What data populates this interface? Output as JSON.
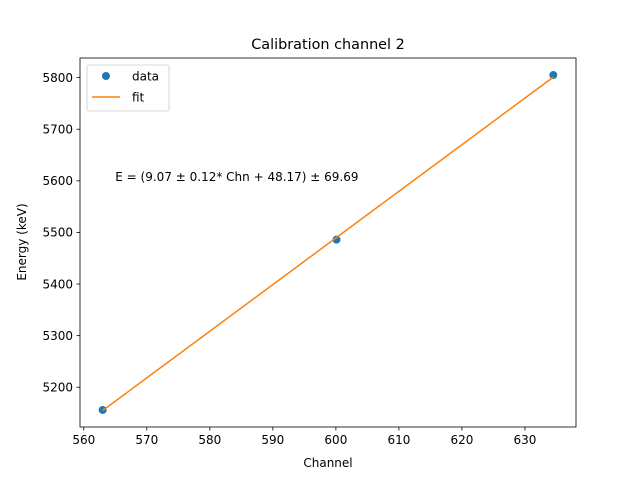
{
  "chart_data": {
    "type": "scatter",
    "title": "Calibration channel 2",
    "xlabel": "Channel",
    "ylabel": "Energy (keV)",
    "xlim": [
      559.4,
      638.1
    ],
    "ylim": [
      5123,
      5838
    ],
    "xticks": [
      560,
      570,
      580,
      590,
      600,
      610,
      620,
      630
    ],
    "yticks": [
      5200,
      5300,
      5400,
      5500,
      5600,
      5700,
      5800
    ],
    "grid": false,
    "legend_position": "top-left",
    "series": [
      {
        "name": "data",
        "kind": "points",
        "color": "#1f77b4",
        "x": [
          563.0,
          600.1,
          634.5
        ],
        "y": [
          5156,
          5486,
          5805
        ]
      },
      {
        "name": "fit",
        "kind": "line",
        "color": "#ff7f0e",
        "x": [
          563.0,
          634.5
        ],
        "y": [
          5155,
          5801
        ]
      }
    ],
    "annotation": {
      "text": "E = (9.07 ± 0.12* Chn + 48.17) ± 69.69",
      "x": 565.0,
      "y": 5600
    }
  }
}
